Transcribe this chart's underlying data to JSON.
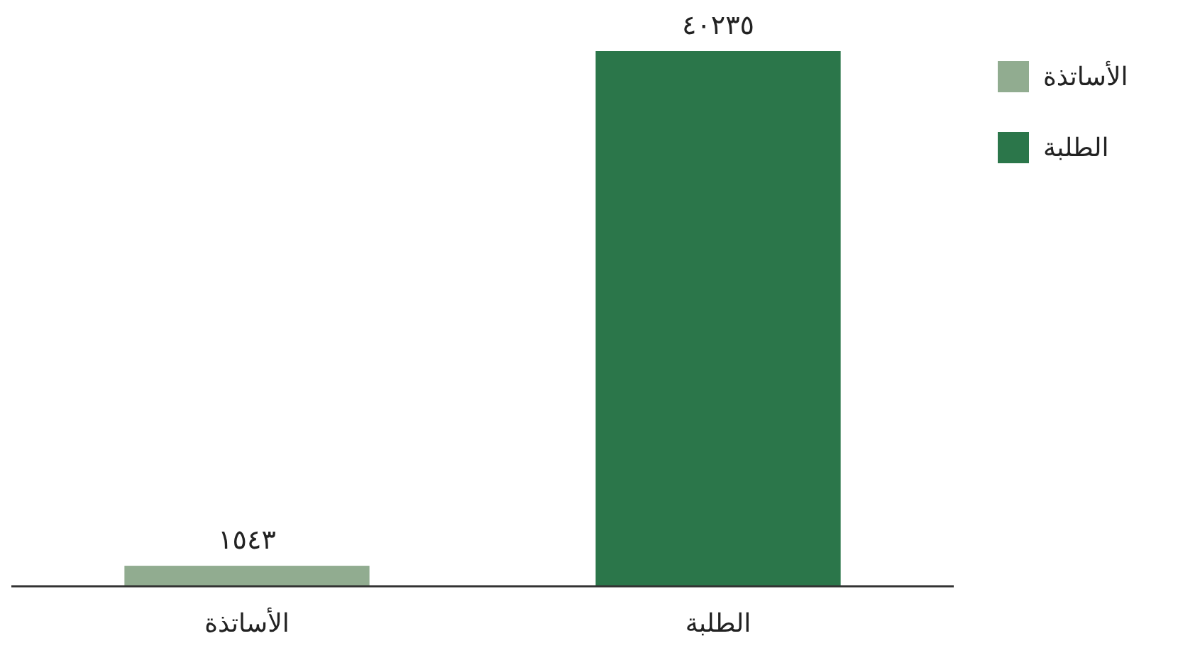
{
  "chart_data": {
    "type": "bar",
    "categories": [
      "الأساتذة",
      "الطلبة"
    ],
    "series": [
      {
        "name": "الأساتذة",
        "color": "#91ac90",
        "values": [
          1543,
          null
        ],
        "value_labels": [
          "١٥٤٣",
          null
        ]
      },
      {
        "name": "الطلبة",
        "color": "#2b764a",
        "values": [
          null,
          40235
        ],
        "value_labels": [
          null,
          "٤٠٢٣٥"
        ]
      }
    ],
    "legend": "top right"
  }
}
